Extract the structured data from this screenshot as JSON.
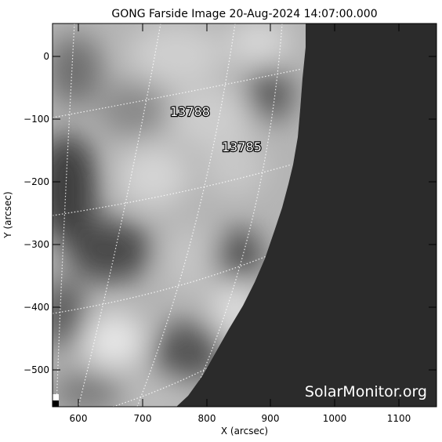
{
  "header": {
    "title": "GONG Farside Image 20-Aug-2024 14:07:00.000"
  },
  "axes": {
    "xlabel": "X (arcsec)",
    "ylabel": "Y (arcsec)",
    "x_ticks": [
      "600",
      "700",
      "800",
      "900",
      "1000",
      "1100"
    ],
    "y_ticks": [
      "0",
      "−100",
      "−200",
      "−300",
      "−400",
      "−500"
    ],
    "x_range": [
      560,
      1165
    ],
    "y_range": [
      -555,
      50
    ]
  },
  "regions": [
    {
      "label": "13788",
      "x": 780,
      "y": -88
    },
    {
      "label": "13785",
      "x": 858,
      "y": -143
    }
  ],
  "watermark": "SolarMonitor.org",
  "colors": {
    "offdisk": "#2b2b2b",
    "grid": "#ffffff"
  }
}
